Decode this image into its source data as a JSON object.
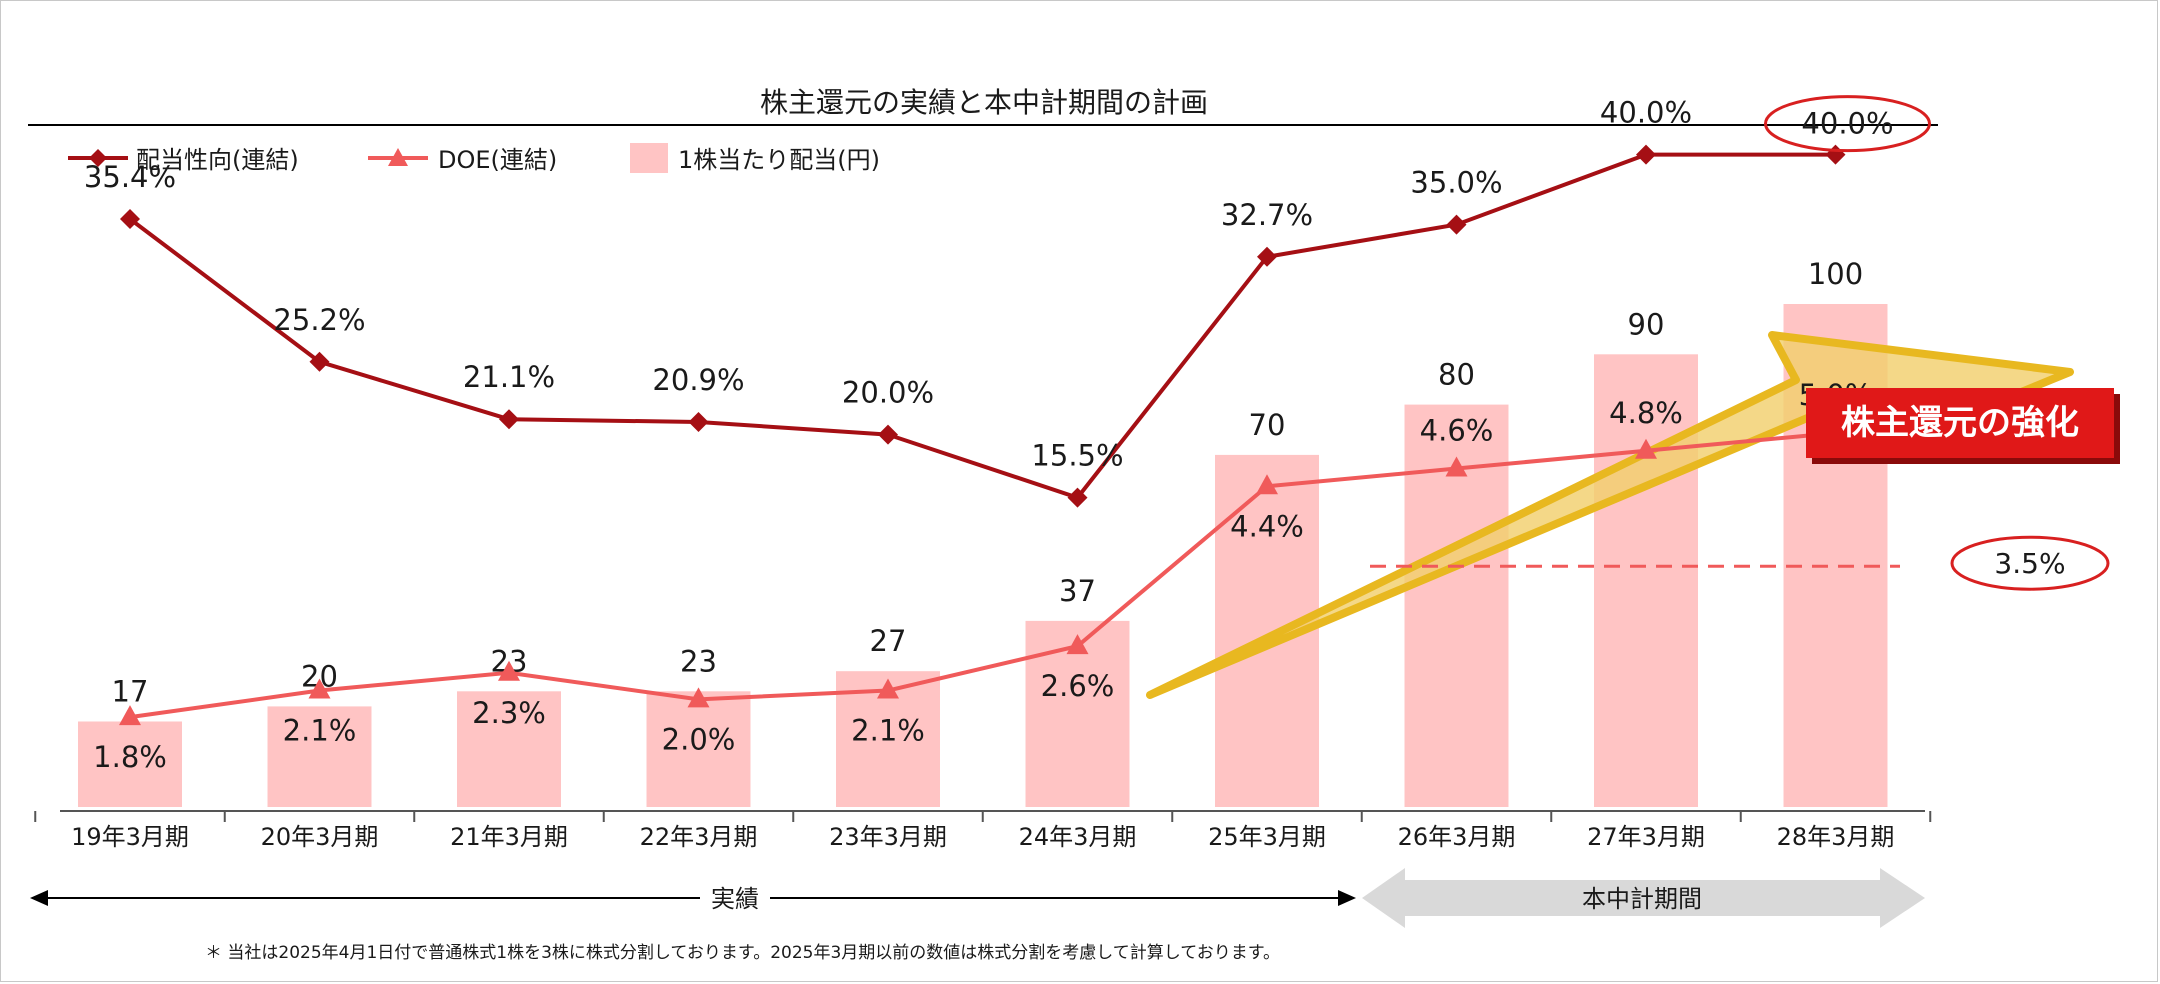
{
  "chart_data": {
    "type": "bar+line",
    "title": "株主還元の実績と本中計期間の計画",
    "categories": [
      "19年3月期",
      "20年3月期",
      "21年3月期",
      "22年3月期",
      "23年3月期",
      "24年3月期",
      "25年3月期",
      "26年3月期",
      "27年3月期",
      "28年3月期"
    ],
    "series": [
      {
        "name": "1株当たり配当(円)",
        "type": "bar",
        "values": [
          17,
          20,
          23,
          23,
          27,
          37,
          70,
          80,
          90,
          100
        ],
        "labels": [
          "17",
          "20",
          "23",
          "23",
          "27",
          "37",
          "70",
          "80",
          "90",
          "100"
        ],
        "color": "#ffc4c4"
      },
      {
        "name": "配当性向(連結)",
        "type": "line",
        "marker": "diamond",
        "values": [
          35.4,
          25.2,
          21.1,
          20.9,
          20.0,
          15.5,
          32.7,
          35.0,
          40.0,
          40.0
        ],
        "labels": [
          "35.4%",
          "25.2%",
          "21.1%",
          "20.9%",
          "20.0%",
          "15.5%",
          "32.7%",
          "35.0%",
          "40.0%",
          "40.0%"
        ],
        "color": "#a50f14"
      },
      {
        "name": "DOE(連結)",
        "type": "line",
        "marker": "triangle",
        "values": [
          1.8,
          2.1,
          2.3,
          2.0,
          2.1,
          2.6,
          4.4,
          4.6,
          4.8,
          5.0
        ],
        "labels": [
          "1.8%",
          "2.1%",
          "2.3%",
          "2.0%",
          "2.1%",
          "2.6%",
          "4.4%",
          "4.6%",
          "4.8%",
          "5.0%"
        ],
        "color": "#f05a5a"
      }
    ],
    "legend": [
      "配当性向(連結)",
      "DOE(連結)",
      "1株当たり配当(円)"
    ],
    "legend_position": "top-left",
    "reference_line": {
      "value": 3.5,
      "label": "3.5%",
      "style": "dashed",
      "color": "#e84a4a",
      "from_category": 7
    },
    "highlight_label": "40.0%",
    "callout": "株主還元の強化",
    "period_actual": "実績",
    "period_plan": "本中計期間",
    "footnote": "＊ 当社は2025年4月1日付で普通株式1株を3株に株式分割しております。2025年3月期以前の数値は株式分割を考慮して計算しております。"
  },
  "colors": {
    "bar": "#ffc4c4",
    "payout": "#a50f14",
    "doe": "#f05a5a",
    "arrow_fill": "#f2cf6e",
    "arrow_edge": "#e8b820",
    "callout_bg": "#e01818",
    "plan_arrow": "#d9d9d9",
    "circle": "#d82020"
  }
}
